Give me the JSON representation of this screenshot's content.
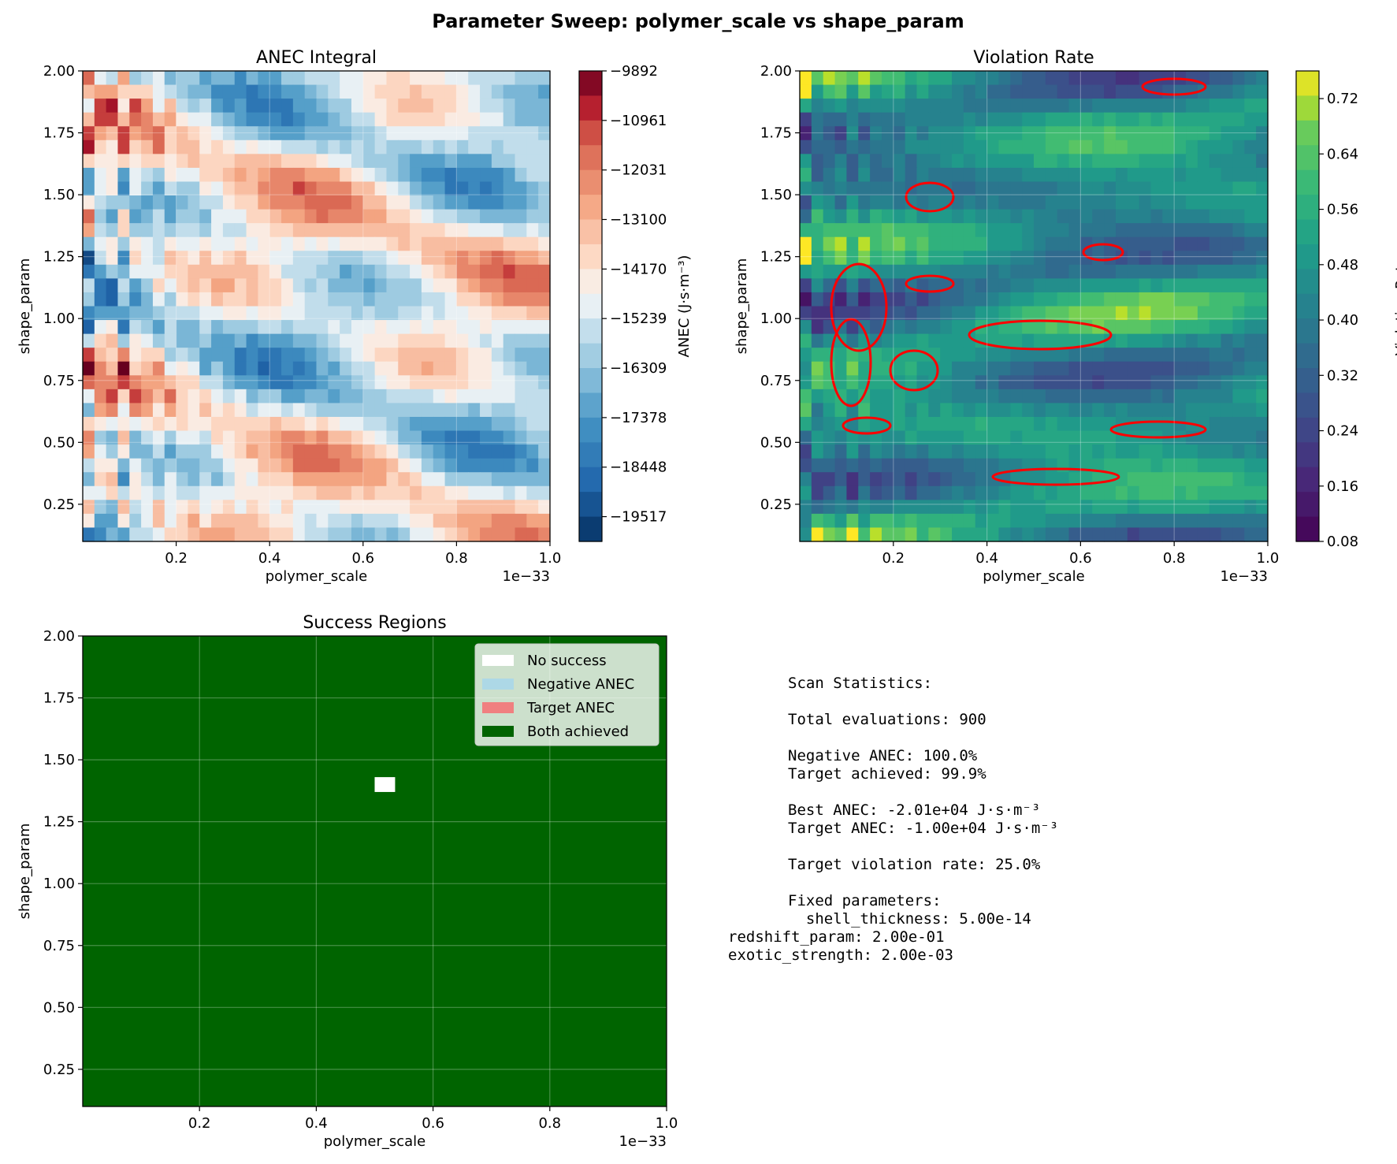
{
  "figure": {
    "suptitle": "Parameter Sweep: polymer_scale vs shape_param"
  },
  "chart_data": [
    {
      "type": "heatmap",
      "title": "ANEC Integral",
      "xlabel": "polymer_scale",
      "ylabel": "shape_param",
      "x_offset_label": "1e−33",
      "xlim": [
        0.0,
        1.0
      ],
      "ylim": [
        0.1,
        2.0
      ],
      "xticks": [
        "0.2",
        "0.4",
        "0.6",
        "0.8",
        "1.0"
      ],
      "yticks": [
        "0.25",
        "0.50",
        "0.75",
        "1.00",
        "1.25",
        "1.50",
        "1.75",
        "2.00"
      ],
      "colormap": "RdBu_r",
      "colorbar_label": "ANEC (J·s·m⁻³)",
      "colorbar_range": [
        -20052,
        -9892
      ],
      "colorbar_ticks": [
        "−9892",
        "−10961",
        "−12031",
        "−13100",
        "−14170",
        "−15239",
        "−16309",
        "−17378",
        "−18448",
        "−19517"
      ],
      "grid": true
    },
    {
      "type": "heatmap",
      "title": "Violation Rate",
      "xlabel": "polymer_scale",
      "ylabel": "shape_param",
      "x_offset_label": "1e−33",
      "xlim": [
        0.0,
        1.0
      ],
      "ylim": [
        0.1,
        2.0
      ],
      "xticks": [
        "0.2",
        "0.4",
        "0.6",
        "0.8",
        "1.0"
      ],
      "yticks": [
        "0.25",
        "0.50",
        "0.75",
        "1.00",
        "1.25",
        "1.50",
        "1.75",
        "2.00"
      ],
      "colormap": "viridis",
      "colorbar_label": "Violation Rate",
      "colorbar_range": [
        0.08,
        0.76
      ],
      "colorbar_ticks": [
        "0.72",
        "0.64",
        "0.56",
        "0.48",
        "0.40",
        "0.32",
        "0.24",
        "0.16",
        "0.08"
      ],
      "contour_level": 0.25,
      "contour_color": "#ff0000",
      "grid": true
    },
    {
      "type": "heatmap",
      "title": "Success Regions",
      "xlabel": "polymer_scale",
      "ylabel": "shape_param",
      "x_offset_label": "1e−33",
      "xlim": [
        0.0,
        1.0
      ],
      "ylim": [
        0.1,
        2.0
      ],
      "xticks": [
        "0.2",
        "0.4",
        "0.6",
        "0.8",
        "1.0"
      ],
      "yticks": [
        "0.25",
        "0.50",
        "0.75",
        "1.00",
        "1.25",
        "1.50",
        "1.75",
        "2.00"
      ],
      "legend": [
        {
          "label": "No success",
          "color": "#ffffff"
        },
        {
          "label": "Negative ANEC",
          "color": "#add8e6"
        },
        {
          "label": "Target ANEC",
          "color": "#f08080"
        },
        {
          "label": "Both achieved",
          "color": "#006400"
        }
      ],
      "legend_placement": "upper-right",
      "background_category": "Both achieved",
      "exception_cells": [
        {
          "category": "No success",
          "x": [
            0.5,
            0.535
          ],
          "y": [
            1.37,
            1.43
          ]
        }
      ],
      "grid": true
    }
  ],
  "stats": {
    "lines": [
      "Scan Statistics:",
      "",
      "Total evaluations: 900",
      "",
      "Negative ANEC: 100.0%",
      "Target achieved: 99.9%",
      "",
      "Best ANEC: -2.01e+04 J·s·m⁻³",
      "Target ANEC: -1.00e+04 J·s·m⁻³",
      "",
      "Target violation rate: 25.0%",
      "",
      "Fixed parameters:",
      "  shell_thickness: 5.00e-14",
      "redshift_param: 2.00e-01",
      "exotic_strength: 2.00e-03"
    ]
  }
}
